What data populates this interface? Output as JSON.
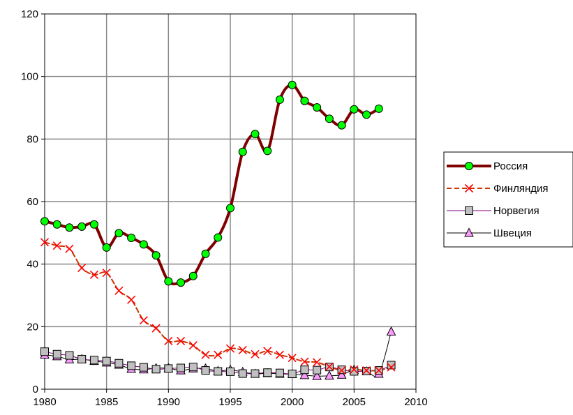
{
  "chart_data": {
    "type": "line",
    "title": "",
    "xlabel": "",
    "ylabel": "",
    "xlim": [
      1980,
      2010
    ],
    "ylim": [
      0,
      120
    ],
    "x_ticks": [
      1980,
      1985,
      1990,
      1995,
      2000,
      2005,
      2010
    ],
    "y_ticks": [
      0,
      20,
      40,
      60,
      80,
      100,
      120
    ],
    "grid": true,
    "legend_position": "right",
    "series": [
      {
        "name": "Россия",
        "color": "#800000",
        "marker": "circle",
        "marker_color": "#00ff00",
        "line_style": "solid-thick",
        "x": [
          1980,
          1981,
          1982,
          1983,
          1984,
          1985,
          1986,
          1987,
          1988,
          1989,
          1990,
          1991,
          1992,
          1993,
          1994,
          1995,
          1996,
          1997,
          1998,
          1999,
          2000,
          2001,
          2002,
          2003,
          2004,
          2005,
          2006,
          2007
        ],
        "values": [
          53.7,
          52.7,
          51.7,
          52.0,
          52.7,
          45.3,
          49.9,
          48.4,
          46.3,
          42.8,
          34.5,
          34.1,
          36.2,
          43.3,
          48.5,
          57.9,
          75.9,
          81.6,
          76.2,
          92.6,
          97.3,
          92.2,
          90.1,
          86.5,
          84.4,
          89.5,
          87.8,
          89.7
        ]
      },
      {
        "name": "Финляндия",
        "color": "#cc3300",
        "marker": "x",
        "marker_color": "#ff0000",
        "line_style": "dashed",
        "x": [
          1980,
          1981,
          1982,
          1983,
          1984,
          1985,
          1986,
          1987,
          1988,
          1989,
          1990,
          1991,
          1992,
          1993,
          1994,
          1995,
          1996,
          1997,
          1998,
          1999,
          2000,
          2001,
          2002,
          2003,
          2004,
          2005,
          2006,
          2007,
          2008
        ],
        "values": [
          47.0,
          45.9,
          44.9,
          38.8,
          36.6,
          37.2,
          31.5,
          28.6,
          22.0,
          19.5,
          15.4,
          15.4,
          14.0,
          11.0,
          11.0,
          13.0,
          12.5,
          11.2,
          12.2,
          11.0,
          10.0,
          8.8,
          8.6,
          7.2,
          6.0,
          6.3,
          6.0,
          6.0,
          7.0
        ]
      },
      {
        "name": "Норвегия",
        "color": "#800080",
        "marker": "square",
        "marker_color": "#c0c0c0",
        "line_style": "solid",
        "x": [
          1980,
          1981,
          1982,
          1983,
          1984,
          1985,
          1986,
          1987,
          1988,
          1989,
          1990,
          1991,
          1992,
          1993,
          1994,
          1995,
          1996,
          1997,
          1998,
          1999,
          2000,
          2001,
          2002,
          2003,
          2004,
          2005,
          2006,
          2007,
          2008
        ],
        "values": [
          12.0,
          11.2,
          10.8,
          9.6,
          9.3,
          9.0,
          8.3,
          7.5,
          7.0,
          6.4,
          6.6,
          6.8,
          7.1,
          6.0,
          5.7,
          5.6,
          5.0,
          5.0,
          5.3,
          5.2,
          4.9,
          6.2,
          6.1,
          7.1,
          6.2,
          5.7,
          5.8,
          6.0,
          7.7
        ]
      },
      {
        "name": "Швеция",
        "color": "#000000",
        "marker": "triangle",
        "marker_color": "#ff99ff",
        "line_style": "solid",
        "x": [
          1980,
          1981,
          1982,
          1983,
          1984,
          1985,
          1986,
          1987,
          1988,
          1989,
          1990,
          1991,
          1992,
          1993,
          1994,
          1995,
          1996,
          1997,
          1998,
          1999,
          2000,
          2001,
          2002,
          2003,
          2004,
          2005,
          2006,
          2007,
          2008
        ],
        "values": [
          11.0,
          10.5,
          9.5,
          9.6,
          9.0,
          8.5,
          7.8,
          6.5,
          6.3,
          6.7,
          6.7,
          6.0,
          6.6,
          6.6,
          5.8,
          6.2,
          5.5,
          4.9,
          5.1,
          4.9,
          4.8,
          4.5,
          4.2,
          4.3,
          4.6,
          6.2,
          5.7,
          4.9,
          18.4
        ]
      }
    ]
  }
}
